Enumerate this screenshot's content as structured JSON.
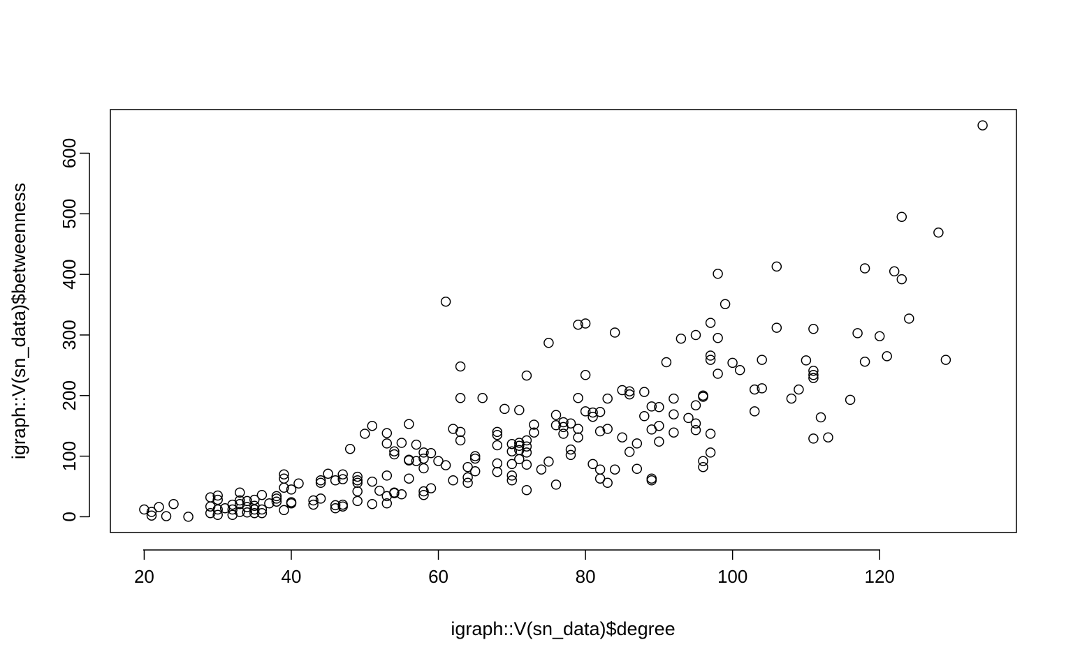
{
  "chart_data": {
    "type": "scatter",
    "title": "",
    "xlabel": "igraph::V(sn_data)$degree",
    "ylabel": "igraph::V(sn_data)$betweenness",
    "xlim": [
      15.4,
      138.6
    ],
    "ylim": [
      -26,
      672
    ],
    "x_ticks": [
      20,
      40,
      60,
      80,
      100,
      120
    ],
    "y_ticks": [
      0,
      100,
      200,
      300,
      400,
      500,
      600
    ],
    "x_tick_labels": [
      "20",
      "40",
      "60",
      "80",
      "100",
      "120"
    ],
    "y_tick_labels": [
      "0",
      "100",
      "200",
      "300",
      "400",
      "500",
      "600"
    ],
    "grid": false,
    "legend": false,
    "marker": "open-circle",
    "points": [
      [
        20,
        12
      ],
      [
        21,
        2
      ],
      [
        21,
        8
      ],
      [
        22,
        16
      ],
      [
        23,
        1
      ],
      [
        24,
        21
      ],
      [
        26,
        0
      ],
      [
        29,
        32
      ],
      [
        29,
        17
      ],
      [
        29,
        6
      ],
      [
        30,
        35
      ],
      [
        30,
        28
      ],
      [
        30,
        12
      ],
      [
        30,
        3
      ],
      [
        31,
        14
      ],
      [
        32,
        20
      ],
      [
        32,
        12
      ],
      [
        32,
        3
      ],
      [
        33,
        40
      ],
      [
        33,
        27
      ],
      [
        33,
        21
      ],
      [
        33,
        8
      ],
      [
        34,
        26
      ],
      [
        34,
        16
      ],
      [
        34,
        7
      ],
      [
        35,
        28
      ],
      [
        35,
        18
      ],
      [
        35,
        12
      ],
      [
        35,
        6
      ],
      [
        36,
        36
      ],
      [
        36,
        12
      ],
      [
        36,
        6
      ],
      [
        37,
        22
      ],
      [
        38,
        34
      ],
      [
        38,
        30
      ],
      [
        38,
        25
      ],
      [
        39,
        70
      ],
      [
        39,
        63
      ],
      [
        39,
        48
      ],
      [
        39,
        11
      ],
      [
        40,
        45
      ],
      [
        40,
        24
      ],
      [
        40,
        22
      ],
      [
        41,
        55
      ],
      [
        43,
        27
      ],
      [
        43,
        20
      ],
      [
        44,
        60
      ],
      [
        44,
        56
      ],
      [
        44,
        30
      ],
      [
        45,
        71
      ],
      [
        46,
        60
      ],
      [
        46,
        19
      ],
      [
        46,
        14
      ],
      [
        47,
        70
      ],
      [
        47,
        62
      ],
      [
        47,
        20
      ],
      [
        47,
        17
      ],
      [
        48,
        112
      ],
      [
        49,
        66
      ],
      [
        49,
        60
      ],
      [
        49,
        56
      ],
      [
        49,
        42
      ],
      [
        49,
        26
      ],
      [
        50,
        137
      ],
      [
        51,
        150
      ],
      [
        51,
        58
      ],
      [
        51,
        21
      ],
      [
        52,
        43
      ],
      [
        53,
        138
      ],
      [
        53,
        121
      ],
      [
        53,
        68
      ],
      [
        53,
        34
      ],
      [
        53,
        22
      ],
      [
        54,
        108
      ],
      [
        54,
        103
      ],
      [
        54,
        40
      ],
      [
        54,
        39
      ],
      [
        55,
        122
      ],
      [
        55,
        37
      ],
      [
        56,
        153
      ],
      [
        56,
        94
      ],
      [
        56,
        93
      ],
      [
        56,
        63
      ],
      [
        57,
        119
      ],
      [
        57,
        92
      ],
      [
        58,
        106
      ],
      [
        58,
        96
      ],
      [
        58,
        80
      ],
      [
        58,
        42
      ],
      [
        58,
        36
      ],
      [
        59,
        105
      ],
      [
        59,
        47
      ],
      [
        60,
        92
      ],
      [
        61,
        355
      ],
      [
        61,
        85
      ],
      [
        62,
        145
      ],
      [
        62,
        60
      ],
      [
        63,
        248
      ],
      [
        63,
        196
      ],
      [
        63,
        140
      ],
      [
        63,
        126
      ],
      [
        64,
        82
      ],
      [
        64,
        65
      ],
      [
        64,
        56
      ],
      [
        65,
        100
      ],
      [
        65,
        96
      ],
      [
        65,
        75
      ],
      [
        66,
        196
      ],
      [
        68,
        140
      ],
      [
        68,
        135
      ],
      [
        68,
        118
      ],
      [
        68,
        88
      ],
      [
        68,
        74
      ],
      [
        69,
        178
      ],
      [
        70,
        120
      ],
      [
        70,
        108
      ],
      [
        70,
        87
      ],
      [
        70,
        68
      ],
      [
        70,
        60
      ],
      [
        71,
        176
      ],
      [
        71,
        122
      ],
      [
        71,
        117
      ],
      [
        71,
        110
      ],
      [
        71,
        95
      ],
      [
        72,
        233
      ],
      [
        72,
        126
      ],
      [
        72,
        116
      ],
      [
        72,
        106
      ],
      [
        72,
        86
      ],
      [
        72,
        44
      ],
      [
        73,
        152
      ],
      [
        73,
        139
      ],
      [
        74,
        78
      ],
      [
        75,
        287
      ],
      [
        75,
        91
      ],
      [
        76,
        168
      ],
      [
        76,
        151
      ],
      [
        76,
        53
      ],
      [
        77,
        156
      ],
      [
        77,
        148
      ],
      [
        77,
        137
      ],
      [
        78,
        154
      ],
      [
        78,
        111
      ],
      [
        78,
        102
      ],
      [
        79,
        317
      ],
      [
        79,
        196
      ],
      [
        79,
        145
      ],
      [
        79,
        131
      ],
      [
        80,
        319
      ],
      [
        80,
        234
      ],
      [
        80,
        174
      ],
      [
        81,
        172
      ],
      [
        81,
        165
      ],
      [
        81,
        87
      ],
      [
        82,
        173
      ],
      [
        82,
        141
      ],
      [
        82,
        78
      ],
      [
        82,
        63
      ],
      [
        83,
        195
      ],
      [
        83,
        145
      ],
      [
        83,
        56
      ],
      [
        84,
        304
      ],
      [
        84,
        78
      ],
      [
        85,
        209
      ],
      [
        85,
        131
      ],
      [
        86,
        207
      ],
      [
        86,
        202
      ],
      [
        86,
        107
      ],
      [
        87,
        121
      ],
      [
        87,
        79
      ],
      [
        88,
        206
      ],
      [
        88,
        166
      ],
      [
        89,
        182
      ],
      [
        89,
        144
      ],
      [
        89,
        63
      ],
      [
        89,
        60
      ],
      [
        90,
        181
      ],
      [
        90,
        150
      ],
      [
        90,
        124
      ],
      [
        91,
        255
      ],
      [
        92,
        195
      ],
      [
        92,
        169
      ],
      [
        92,
        139
      ],
      [
        93,
        294
      ],
      [
        94,
        163
      ],
      [
        95,
        300
      ],
      [
        95,
        184
      ],
      [
        95,
        154
      ],
      [
        95,
        143
      ],
      [
        96,
        200
      ],
      [
        96,
        198
      ],
      [
        96,
        92
      ],
      [
        96,
        82
      ],
      [
        97,
        320
      ],
      [
        97,
        266
      ],
      [
        97,
        259
      ],
      [
        97,
        137
      ],
      [
        97,
        106
      ],
      [
        98,
        401
      ],
      [
        98,
        295
      ],
      [
        98,
        236
      ],
      [
        99,
        351
      ],
      [
        100,
        254
      ],
      [
        101,
        242
      ],
      [
        103,
        210
      ],
      [
        103,
        174
      ],
      [
        104,
        259
      ],
      [
        104,
        212
      ],
      [
        106,
        413
      ],
      [
        106,
        312
      ],
      [
        108,
        195
      ],
      [
        109,
        210
      ],
      [
        110,
        258
      ],
      [
        111,
        310
      ],
      [
        111,
        241
      ],
      [
        111,
        234
      ],
      [
        111,
        229
      ],
      [
        111,
        129
      ],
      [
        112,
        164
      ],
      [
        113,
        131
      ],
      [
        116,
        193
      ],
      [
        117,
        303
      ],
      [
        118,
        410
      ],
      [
        118,
        256
      ],
      [
        120,
        298
      ],
      [
        121,
        265
      ],
      [
        122,
        405
      ],
      [
        123,
        495
      ],
      [
        123,
        392
      ],
      [
        124,
        327
      ],
      [
        128,
        469
      ],
      [
        129,
        259
      ],
      [
        134,
        646
      ]
    ]
  }
}
